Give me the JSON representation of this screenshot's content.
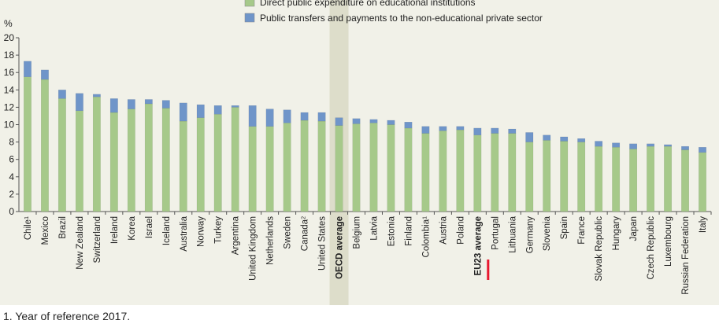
{
  "chart_data": {
    "type": "bar",
    "stacked": true,
    "y_unit_label": "%",
    "ylim": [
      0,
      20
    ],
    "yticks": [
      0,
      2,
      4,
      6,
      8,
      10,
      12,
      14,
      16,
      18,
      20
    ],
    "legend_placement": "top-center",
    "grid": false,
    "highlighted_category": "OECD average",
    "marked_category": "Portugal",
    "bold_categories": [
      "OECD average",
      "EU23 average"
    ],
    "categories": [
      {
        "label": "Chile",
        "sup": "1"
      },
      {
        "label": "Mexico",
        "sup": ""
      },
      {
        "label": "Brazil",
        "sup": ""
      },
      {
        "label": "New Zealand",
        "sup": ""
      },
      {
        "label": "Switzerland",
        "sup": ""
      },
      {
        "label": "Ireland",
        "sup": ""
      },
      {
        "label": "Korea",
        "sup": ""
      },
      {
        "label": "Israel",
        "sup": ""
      },
      {
        "label": "Iceland",
        "sup": ""
      },
      {
        "label": "Australia",
        "sup": ""
      },
      {
        "label": "Norway",
        "sup": ""
      },
      {
        "label": "Turkey",
        "sup": ""
      },
      {
        "label": "Argentina",
        "sup": ""
      },
      {
        "label": "United Kingdom",
        "sup": ""
      },
      {
        "label": "Netherlands",
        "sup": ""
      },
      {
        "label": "Sweden",
        "sup": ""
      },
      {
        "label": "Canada",
        "sup": "2"
      },
      {
        "label": "United States",
        "sup": ""
      },
      {
        "label": "OECD average",
        "sup": ""
      },
      {
        "label": "Belgium",
        "sup": ""
      },
      {
        "label": "Latvia",
        "sup": ""
      },
      {
        "label": "Estonia",
        "sup": ""
      },
      {
        "label": "Finland",
        "sup": ""
      },
      {
        "label": "Colombia",
        "sup": "1"
      },
      {
        "label": "Austria",
        "sup": ""
      },
      {
        "label": "Poland",
        "sup": ""
      },
      {
        "label": "EU23 average",
        "sup": ""
      },
      {
        "label": "Portugal",
        "sup": ""
      },
      {
        "label": "Lithuania",
        "sup": ""
      },
      {
        "label": "Germany",
        "sup": ""
      },
      {
        "label": "Slovenia",
        "sup": ""
      },
      {
        "label": "Spain",
        "sup": ""
      },
      {
        "label": "France",
        "sup": ""
      },
      {
        "label": "Slovak Republic",
        "sup": ""
      },
      {
        "label": "Hungary",
        "sup": ""
      },
      {
        "label": "Japan",
        "sup": ""
      },
      {
        "label": "Czech Republic",
        "sup": ""
      },
      {
        "label": "Luxembourg",
        "sup": ""
      },
      {
        "label": "Russian Federation",
        "sup": ""
      },
      {
        "label": "Italy",
        "sup": ""
      }
    ],
    "series": [
      {
        "name": "Direct public expenditure on educational institutions",
        "color": "#a6c98a",
        "values": [
          15.5,
          15.2,
          13.0,
          11.6,
          13.2,
          11.4,
          11.8,
          12.4,
          11.9,
          10.4,
          10.8,
          11.2,
          12.0,
          9.8,
          9.8,
          10.2,
          10.5,
          10.4,
          9.9,
          10.1,
          10.2,
          10.0,
          9.6,
          9.0,
          9.3,
          9.4,
          8.8,
          9.0,
          9.0,
          8.0,
          8.2,
          8.1,
          8.0,
          7.5,
          7.4,
          7.2,
          7.5,
          7.5,
          7.1,
          6.8
        ]
      },
      {
        "name": "Public transfers and payments to the non-educational private sector",
        "color": "#6f95c9",
        "values": [
          1.8,
          1.1,
          1.0,
          2.0,
          0.3,
          1.6,
          1.1,
          0.5,
          0.9,
          2.1,
          1.5,
          1.0,
          0.2,
          2.4,
          2.0,
          1.5,
          0.9,
          1.0,
          0.9,
          0.6,
          0.4,
          0.5,
          0.7,
          0.8,
          0.5,
          0.4,
          0.8,
          0.6,
          0.5,
          1.1,
          0.6,
          0.5,
          0.4,
          0.6,
          0.5,
          0.6,
          0.3,
          0.2,
          0.4,
          0.6
        ]
      }
    ]
  },
  "footnote": "1. Year of reference 2017."
}
